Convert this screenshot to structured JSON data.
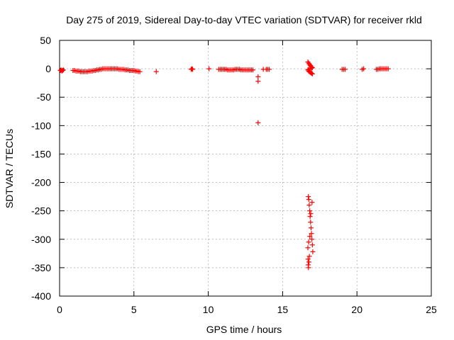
{
  "chart_data": {
    "type": "scatter",
    "title": "Day 275 of 2019, Sidereal Day-to-day VTEC variation (SDTVAR) for receiver rkld",
    "xlabel": "GPS time / hours",
    "ylabel": "SDTVAR / TECUs",
    "xlim": [
      0,
      25
    ],
    "ylim": [
      -400,
      50
    ],
    "xticks": [
      "0",
      "5",
      "10",
      "15",
      "20",
      "25"
    ],
    "yticks": [
      "50",
      "0",
      "-50",
      "-100",
      "-150",
      "-200",
      "-250",
      "-300",
      "-350",
      "-400"
    ],
    "grid": true,
    "marker": "plus",
    "color": "#ff0000",
    "series": [
      {
        "x": [
          0.05,
          0.1,
          0.15,
          0.2,
          0.25,
          0.9,
          1.0,
          1.1,
          1.2,
          1.3,
          1.4,
          1.5,
          1.6,
          1.7,
          1.8,
          1.9,
          2.0,
          2.1,
          2.2,
          2.3,
          2.4,
          2.5,
          2.6,
          2.7,
          2.8,
          2.9,
          3.0,
          3.1,
          3.2,
          3.3,
          3.4,
          3.5,
          3.6,
          3.7,
          3.8,
          3.9,
          4.0,
          4.1,
          4.2,
          4.3,
          4.4,
          4.5,
          4.6,
          4.7,
          4.8,
          4.9,
          5.0,
          5.1,
          5.2,
          5.3,
          5.4,
          6.5,
          8.85,
          8.9,
          8.95,
          10.05,
          10.7,
          10.8,
          10.9,
          11.0,
          11.1,
          11.2,
          11.3,
          11.4,
          11.5,
          11.6,
          11.7,
          11.8,
          11.9,
          12.0,
          12.1,
          12.2,
          12.3,
          12.4,
          12.5,
          12.6,
          12.7,
          12.8,
          12.9,
          13.0,
          13.35,
          13.35,
          13.35,
          13.7,
          13.9,
          14.0,
          14.1,
          16.7,
          16.75,
          16.8,
          16.85,
          16.9,
          16.95,
          17.0,
          16.7,
          16.75,
          16.8,
          16.85,
          16.9,
          16.95,
          17.0,
          16.75,
          16.85,
          16.95,
          16.73,
          16.76,
          16.79,
          16.82,
          16.85,
          16.88,
          16.91,
          16.94,
          16.97,
          17.0,
          17.03,
          16.8,
          16.77,
          16.74,
          16.72,
          16.71,
          16.7,
          16.75,
          16.83,
          16.89,
          16.98,
          19.0,
          19.1,
          19.2,
          20.35,
          20.45,
          21.3,
          21.4,
          21.5,
          21.6,
          21.7,
          21.8,
          21.9,
          22.0,
          22.1
        ],
        "y": [
          -3,
          -2,
          -4,
          -3,
          -2,
          -3,
          -3,
          -4,
          -4,
          -4,
          -5,
          -5,
          -5,
          -5,
          -5,
          -5,
          -4,
          -4,
          -4,
          -3,
          -3,
          -2,
          -2,
          -1,
          -1,
          0,
          0,
          0,
          0,
          0,
          0,
          0,
          0,
          0,
          0,
          0,
          -1,
          -1,
          -1,
          -1,
          -2,
          -2,
          -2,
          -3,
          -3,
          -3,
          -3,
          -4,
          -4,
          -5,
          -5,
          -5,
          -1,
          0,
          -1,
          0,
          -1,
          -1,
          -1,
          -1,
          -1,
          -1,
          -2,
          -2,
          -2,
          -2,
          -2,
          -1,
          -1,
          -1,
          -1,
          -2,
          -2,
          -2,
          -2,
          -2,
          -2,
          -2,
          -2,
          -2,
          -14,
          -22,
          -95,
          -1,
          -1,
          -1,
          -1,
          12,
          10,
          8,
          6,
          5,
          3,
          2,
          -2,
          -4,
          -5,
          -6,
          -7,
          -8,
          -9,
          -1,
          0,
          1,
          -225,
          -230,
          -240,
          -250,
          -260,
          -270,
          -280,
          -290,
          -300,
          -310,
          -322,
          -330,
          -340,
          -350,
          -345,
          -335,
          -315,
          -305,
          -295,
          -255,
          -235,
          -1,
          -1,
          -1,
          -1,
          0,
          -1,
          -1,
          0,
          0,
          0,
          0,
          0,
          0,
          0
        ]
      }
    ]
  }
}
